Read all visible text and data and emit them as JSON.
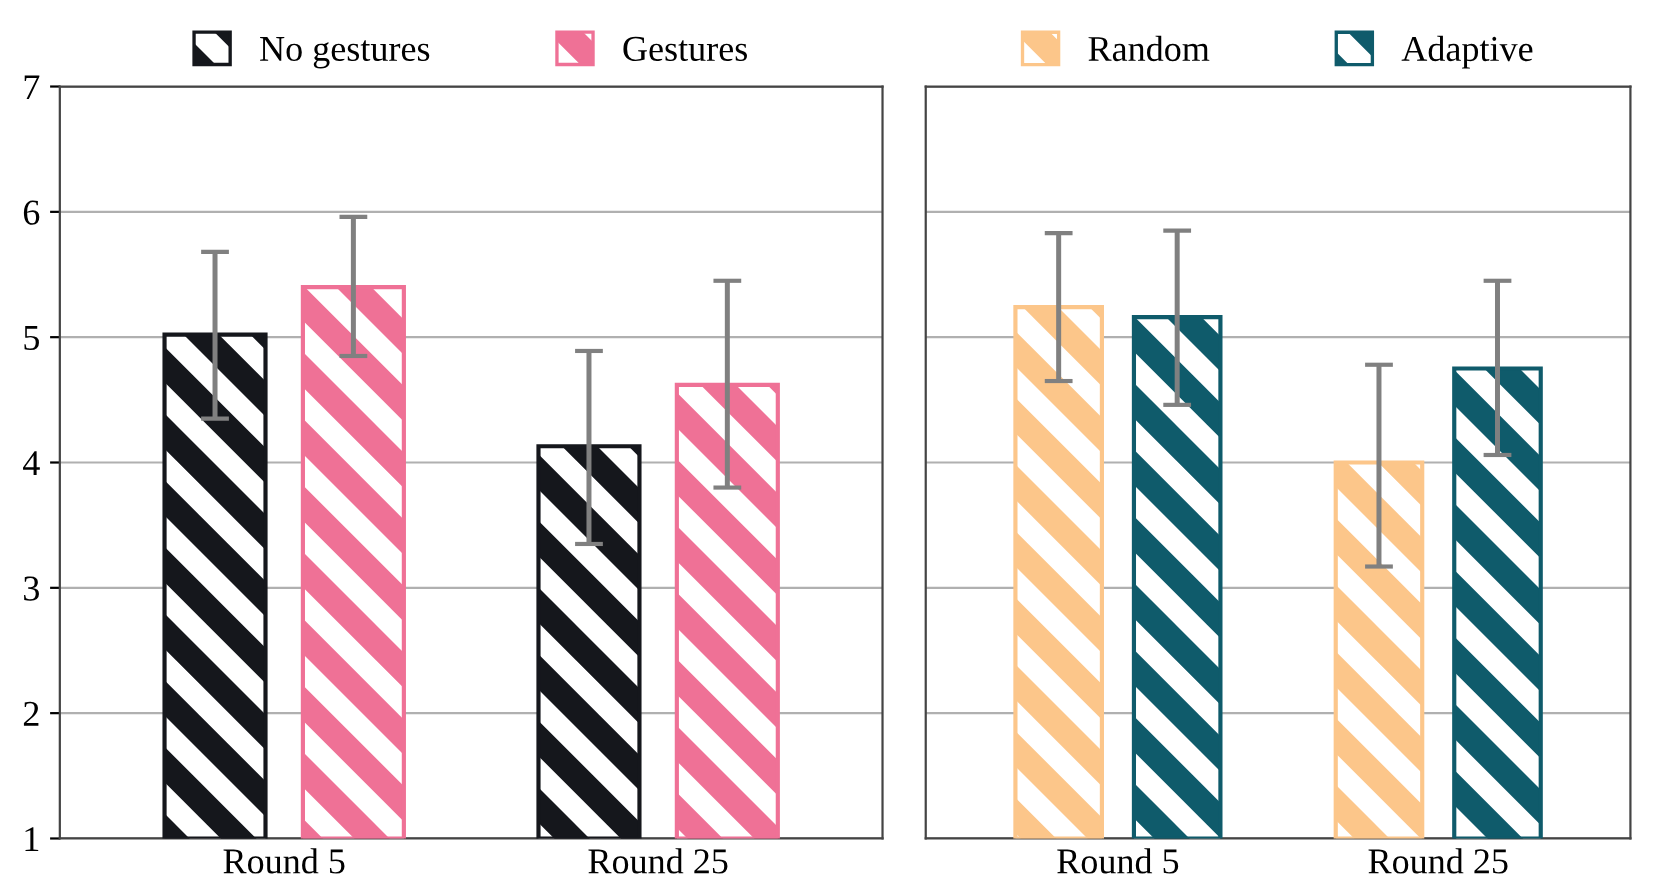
{
  "chart_data": [
    {
      "type": "bar",
      "categories": [
        "Round 5",
        "Round 25"
      ],
      "ylim": [
        1,
        7
      ],
      "yticks": [
        1,
        2,
        3,
        4,
        5,
        6,
        7
      ],
      "grid": "y",
      "legend": "top",
      "series": [
        {
          "name": "No gestures",
          "color": "#15171c",
          "values": [
            5.02,
            4.13
          ],
          "errors": [
            [
              4.35,
              5.68
            ],
            [
              3.35,
              4.89
            ]
          ]
        },
        {
          "name": "Gestures",
          "color": "#ef7196",
          "values": [
            5.4,
            4.62
          ],
          "errors": [
            [
              4.85,
              5.96
            ],
            [
              3.8,
              5.45
            ]
          ]
        }
      ]
    },
    {
      "type": "bar",
      "categories": [
        "Round 5",
        "Round 25"
      ],
      "ylim": [
        1,
        7
      ],
      "yticks": [
        1,
        2,
        3,
        4,
        5,
        6,
        7
      ],
      "grid": "y",
      "legend": "top",
      "tick_labels": "x",
      "series": [
        {
          "name": "Random",
          "color": "#fcc68a",
          "values": [
            5.24,
            4.0
          ],
          "errors": [
            [
              4.65,
              5.83
            ],
            [
              3.17,
              4.78
            ]
          ]
        },
        {
          "name": "Adaptive",
          "color": "#0f5b6b",
          "values": [
            5.16,
            4.75
          ],
          "errors": [
            [
              4.46,
              5.85
            ],
            [
              4.06,
              5.45
            ]
          ]
        }
      ]
    }
  ]
}
